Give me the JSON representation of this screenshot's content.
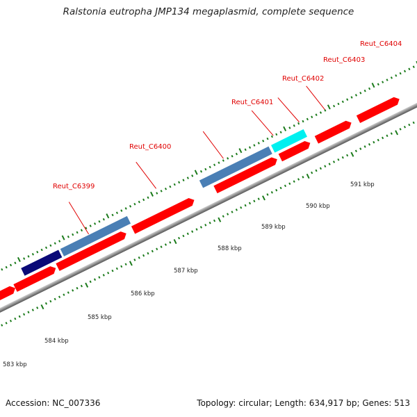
{
  "title": "Ralstonia eutropha JMP134 megaplasmid, complete sequence",
  "footer": {
    "accession": "Accession: NC_007336",
    "stats": "Topology: circular; Length: 634,917 bp; Genes: 513"
  },
  "gene_labels": [
    "Reut_C6399",
    "Reut_C6400",
    "Reut_C6401",
    "Reut_C6402",
    "Reut_C6403",
    "Reut_C6404"
  ],
  "kbp_labels": [
    "583 kbp",
    "584 kbp",
    "585 kbp",
    "586 kbp",
    "587 kbp",
    "588 kbp",
    "589 kbp",
    "590 kbp",
    "591 kbp"
  ],
  "colors": {
    "gene_red": "#ff0000",
    "gene_steelblue": "#4a7fb5",
    "gene_navy": "#0a0a78",
    "gene_cyan": "#00f0f0",
    "label_red": "#e00000",
    "tick_green": "#1a7a1a",
    "backbone": "#888888"
  }
}
